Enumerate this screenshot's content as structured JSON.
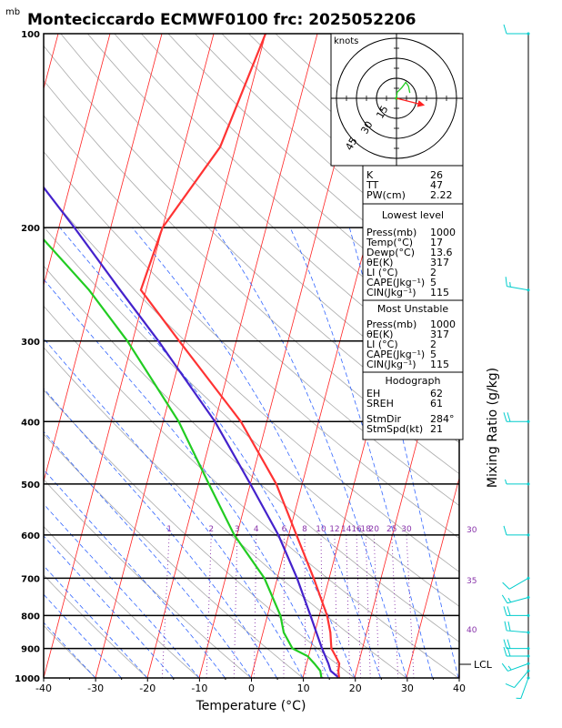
{
  "title": "Monteciccardo ECMWF0100 frc: 2025052206",
  "pressure_unit": "mb",
  "xlabel": "Temperature (°C)",
  "right_label": "Mixing Ratio (g/kg)",
  "hodo_unit": "knots",
  "hodo_rings": [
    "15",
    "30",
    "45"
  ],
  "lcl_label": "LCL",
  "indices_top": [
    {
      "k": "K",
      "v": "26"
    },
    {
      "k": "TT",
      "v": "47"
    },
    {
      "k": "PW(cm)",
      "v": "2.22"
    }
  ],
  "lowest": {
    "heading": "Lowest level",
    "rows": [
      {
        "k": "Press(mb)",
        "v": "1000"
      },
      {
        "k": "Temp(°C)",
        "v": "17"
      },
      {
        "k": "Dewp(°C)",
        "v": "13.6"
      },
      {
        "k": "θE(K)",
        "v": "317"
      },
      {
        "k": "LI (°C)",
        "v": "2"
      },
      {
        "k": "CAPE(Jkg⁻¹)",
        "v": "5"
      },
      {
        "k": "CIN(Jkg⁻¹)",
        "v": "115"
      }
    ]
  },
  "unstable": {
    "heading": "Most Unstable",
    "rows": [
      {
        "k": "Press(mb)",
        "v": "1000"
      },
      {
        "k": "θE(K)",
        "v": "317"
      },
      {
        "k": "LI (°C)",
        "v": "2"
      },
      {
        "k": "CAPE(Jkg⁻¹)",
        "v": "5"
      },
      {
        "k": "CIN(Jkg⁻¹)",
        "v": "115"
      }
    ]
  },
  "hodograph": {
    "heading": "Hodograph",
    "rows": [
      {
        "k": "EH",
        "v": "62"
      },
      {
        "k": "SREH",
        "v": "61"
      },
      {
        "k": "StmDir",
        "v": "284°"
      },
      {
        "k": "StmSpd(kt)",
        "v": "21"
      }
    ]
  },
  "colors": {
    "temperature": "#ff3333",
    "dewpoint": "#22cc22",
    "parcel": "#4422cc",
    "isotherm": "#ff2222",
    "dry_adiabat": "#aaaaaa",
    "moist_adiabat": "#3366ff",
    "mixing_ratio": "#8833aa",
    "wind_barb": "#00cccc"
  },
  "chart_data": {
    "type": "skew-t",
    "x_ticks": [
      -40,
      -30,
      -20,
      -10,
      0,
      10,
      20,
      30,
      40
    ],
    "xlim": [
      -40,
      40
    ],
    "y_ticks": [
      100,
      200,
      300,
      400,
      500,
      600,
      700,
      800,
      900,
      1000
    ],
    "ylim": [
      1000,
      100
    ],
    "log_pressure": true,
    "mixing_ratio_labels": [
      "1",
      "2",
      "3",
      "4",
      "6",
      "8",
      "10",
      "12",
      "14",
      "16",
      "18",
      "20",
      "25",
      "30"
    ],
    "mixing_ratio_values": [
      1,
      2,
      3,
      4,
      6,
      8,
      10,
      12,
      14,
      16,
      18,
      20,
      25,
      30
    ],
    "theta_e_labels": [
      "30",
      "35",
      "40"
    ],
    "temperature": [
      {
        "p": 1000,
        "t": 17
      },
      {
        "p": 975,
        "t": 16.5
      },
      {
        "p": 950,
        "t": 16.3
      },
      {
        "p": 925,
        "t": 15.2
      },
      {
        "p": 900,
        "t": 14
      },
      {
        "p": 850,
        "t": 13
      },
      {
        "p": 800,
        "t": 11.5
      },
      {
        "p": 700,
        "t": 7
      },
      {
        "p": 600,
        "t": 1.5
      },
      {
        "p": 500,
        "t": -5
      },
      {
        "p": 400,
        "t": -15
      },
      {
        "p": 300,
        "t": -31
      },
      {
        "p": 250,
        "t": -41
      },
      {
        "p": 200,
        "t": -40
      },
      {
        "p": 150,
        "t": -33
      },
      {
        "p": 100,
        "t": -30
      }
    ],
    "dewpoint": [
      {
        "p": 1000,
        "t": 13.6
      },
      {
        "p": 975,
        "t": 13
      },
      {
        "p": 950,
        "t": 11.5
      },
      {
        "p": 925,
        "t": 9.8
      },
      {
        "p": 900,
        "t": 6.5
      },
      {
        "p": 850,
        "t": 4
      },
      {
        "p": 800,
        "t": 2.5
      },
      {
        "p": 700,
        "t": -2.5
      },
      {
        "p": 600,
        "t": -10.5
      },
      {
        "p": 500,
        "t": -18
      },
      {
        "p": 400,
        "t": -27
      },
      {
        "p": 300,
        "t": -41
      },
      {
        "p": 250,
        "t": -51
      },
      {
        "p": 200,
        "t": -65
      },
      {
        "p": 150,
        "t": -80
      },
      {
        "p": 100,
        "t": -96
      }
    ],
    "parcel": [
      {
        "p": 1000,
        "t": 17
      },
      {
        "p": 975,
        "t": 15
      },
      {
        "p": 950,
        "t": 14.2
      },
      {
        "p": 900,
        "t": 12.2
      },
      {
        "p": 850,
        "t": 10.3
      },
      {
        "p": 800,
        "t": 8.3
      },
      {
        "p": 700,
        "t": 3.8
      },
      {
        "p": 600,
        "t": -2
      },
      {
        "p": 500,
        "t": -10
      },
      {
        "p": 400,
        "t": -20
      },
      {
        "p": 300,
        "t": -35
      },
      {
        "p": 250,
        "t": -45
      },
      {
        "p": 200,
        "t": -57
      },
      {
        "p": 150,
        "t": -73
      },
      {
        "p": 100,
        "t": -95
      }
    ],
    "lcl_pressure": 955,
    "hodograph_points": [
      {
        "u": 0.5,
        "v": 4.5
      },
      {
        "u": 4,
        "v": 8
      },
      {
        "u": 7,
        "v": 12
      },
      {
        "u": 9,
        "v": 9
      },
      {
        "u": 10,
        "v": 4
      }
    ],
    "storm_motion": {
      "dir_deg": 284,
      "speed_kt": 21
    },
    "winds": [
      {
        "p": 1000,
        "dir": 200,
        "kt": 5
      },
      {
        "p": 975,
        "dir": 220,
        "kt": 10
      },
      {
        "p": 950,
        "dir": 250,
        "kt": 15
      },
      {
        "p": 925,
        "dir": 270,
        "kt": 20
      },
      {
        "p": 900,
        "dir": 270,
        "kt": 20
      },
      {
        "p": 850,
        "dir": 275,
        "kt": 20
      },
      {
        "p": 800,
        "dir": 270,
        "kt": 20
      },
      {
        "p": 750,
        "dir": 255,
        "kt": 15
      },
      {
        "p": 700,
        "dir": 240,
        "kt": 10
      },
      {
        "p": 600,
        "dir": 270,
        "kt": 10
      },
      {
        "p": 500,
        "dir": 270,
        "kt": 5
      },
      {
        "p": 400,
        "dir": 270,
        "kt": 20
      },
      {
        "p": 250,
        "dir": 280,
        "kt": 15
      },
      {
        "p": 100,
        "dir": 270,
        "kt": 10
      }
    ]
  }
}
